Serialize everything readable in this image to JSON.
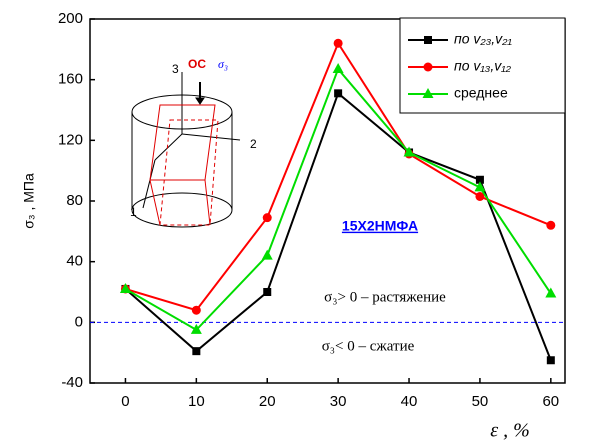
{
  "chart_data": {
    "type": "line",
    "x": [
      0,
      10,
      20,
      30,
      40,
      50,
      60
    ],
    "series": [
      {
        "name": "по v₂₃,v₂₁",
        "color": "#000000",
        "marker": "square",
        "values": [
          22,
          -19,
          20,
          151,
          112,
          94,
          -25
        ]
      },
      {
        "name": "по v₁₃,v₁₂",
        "color": "#ff0000",
        "marker": "circle",
        "values": [
          22,
          8,
          69,
          184,
          111,
          83,
          64
        ]
      },
      {
        "name": "среднее",
        "color": "#00dd00",
        "marker": "triangle",
        "values": [
          22,
          -5,
          44,
          167,
          112,
          89,
          19
        ]
      }
    ],
    "xlim": [
      -5,
      62
    ],
    "xticks": [
      0,
      10,
      20,
      30,
      40,
      50,
      60
    ],
    "ylim": [
      -40,
      200
    ],
    "yticks": [
      -40,
      0,
      40,
      80,
      120,
      160,
      200
    ],
    "xlabel": "ε , %",
    "ylabel": "σ₃ , МПа",
    "reference_line": 0,
    "annotations": [
      "15Х2НМФА",
      "σ₃> 0 – растяжение",
      "σ₃< 0 – сжатие"
    ],
    "inset_labels": [
      "3",
      "2",
      "1",
      "ОС",
      "σ₃"
    ],
    "legend": "top-right"
  }
}
